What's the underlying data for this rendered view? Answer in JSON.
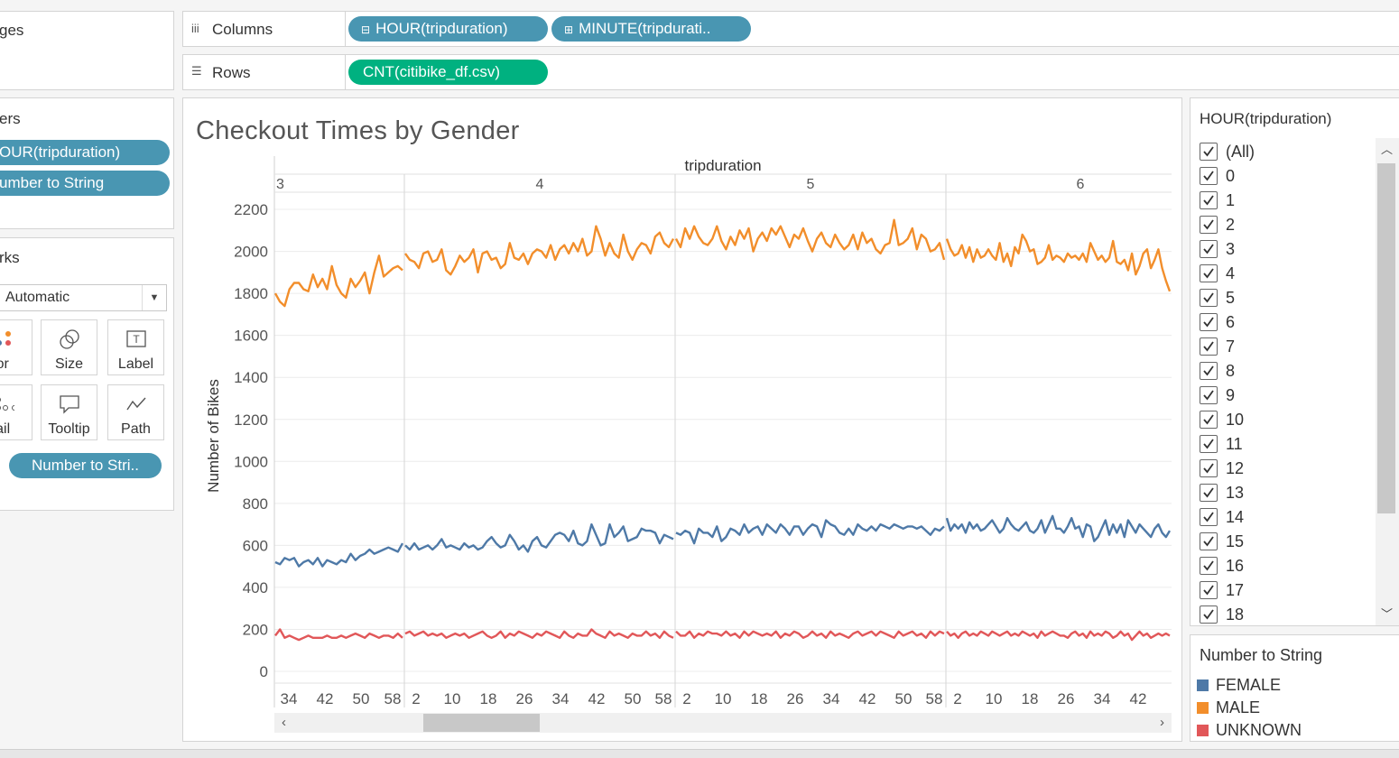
{
  "left_panel": {
    "pages_title": "ges",
    "filters_title": "ers",
    "filter_pills": [
      "OUR(tripduration)",
      "umber to String"
    ],
    "marks_title": "rks",
    "mark_type": "Automatic",
    "mark_buttons": [
      {
        "label": "olor",
        "icon": "color-icon"
      },
      {
        "label": "Size",
        "icon": "size-icon"
      },
      {
        "label": "Label",
        "icon": "label-icon"
      },
      {
        "label": "etail",
        "icon": "detail-icon"
      },
      {
        "label": "Tooltip",
        "icon": "tooltip-icon"
      },
      {
        "label": "Path",
        "icon": "path-icon"
      }
    ],
    "marks_pill": "Number to Stri.."
  },
  "shelves": {
    "columns_label": "Columns",
    "columns_pills": [
      "HOUR(tripduration)",
      "MINUTE(tripdurati.."
    ],
    "rows_label": "Rows",
    "rows_pills": [
      "CNT(citibike_df.csv)"
    ]
  },
  "filter_card": {
    "title": "HOUR(tripduration)",
    "items": [
      "(All)",
      "0",
      "1",
      "2",
      "3",
      "4",
      "5",
      "6",
      "7",
      "8",
      "9",
      "10",
      "11",
      "12",
      "13",
      "14",
      "15",
      "16",
      "17",
      "18"
    ]
  },
  "legend_card": {
    "title": "Number to String",
    "items": [
      {
        "label": "FEMALE",
        "color": "#4e79a7"
      },
      {
        "label": "MALE",
        "color": "#f28e2b"
      },
      {
        "label": "UNKNOWN",
        "color": "#e15759"
      }
    ]
  },
  "chart_data": {
    "type": "line",
    "title": "Checkout Times by Gender",
    "top_axis_title": "tripduration",
    "hour_headers": [
      "3",
      "4",
      "5",
      "6"
    ],
    "ylabel": "Number of Bikes",
    "ylim": [
      0,
      2200
    ],
    "yticks": [
      0,
      200,
      400,
      600,
      800,
      1000,
      1200,
      1400,
      1600,
      1800,
      2000,
      2200
    ],
    "xtick_labels": [
      [
        "34",
        "42",
        "50",
        "58"
      ],
      [
        "2",
        "10",
        "18",
        "26",
        "34",
        "42",
        "50",
        "58"
      ],
      [
        "2",
        "10",
        "18",
        "26",
        "34",
        "42",
        "50",
        "58"
      ],
      [
        "2",
        "10",
        "18",
        "26",
        "34",
        "42"
      ]
    ],
    "x_minutes_visible": {
      "hour_3_start": 26,
      "hour_6_end": 50
    },
    "grid": true,
    "series": [
      {
        "name": "MALE",
        "color": "#f28e2b",
        "hours": [
          [
            1800,
            1760,
            1740,
            1820,
            1850,
            1850,
            1820,
            1810,
            1890,
            1830,
            1870,
            1820,
            1930,
            1840,
            1800,
            1780,
            1870,
            1830,
            1860,
            1900,
            1800,
            1900,
            1980,
            1880,
            1900,
            1920,
            1930,
            1910
          ],
          [
            1990,
            1960,
            1950,
            1920,
            1990,
            2000,
            1950,
            1960,
            2010,
            1910,
            1890,
            1930,
            1980,
            1950,
            1970,
            2010,
            1900,
            1990,
            2000,
            1960,
            1970,
            1920,
            1940,
            2040,
            1970,
            1960,
            1990,
            1940,
            1990,
            2010,
            2000,
            1970,
            2030,
            1960,
            2010,
            2030,
            1990,
            2040,
            2000,
            2060,
            1980,
            2000,
            2120,
            2060,
            1980,
            2040,
            1990,
            1970,
            2080,
            2000,
            1960,
            2010,
            2040,
            2030,
            1990,
            2070,
            2090,
            2040,
            2020,
            2060
          ],
          [
            2060,
            2020,
            2110,
            2060,
            2120,
            2070,
            2040,
            2030,
            2060,
            2120,
            2050,
            2010,
            2070,
            2030,
            2100,
            2060,
            2110,
            2000,
            2060,
            2090,
            2050,
            2110,
            2080,
            2120,
            2070,
            2020,
            2080,
            2060,
            2110,
            2050,
            2000,
            2060,
            2090,
            2040,
            2020,
            2080,
            2040,
            2010,
            2030,
            2080,
            2010,
            2090,
            2040,
            2060,
            2010,
            1990,
            2030,
            2040,
            2150,
            2030,
            2040,
            2060,
            2110,
            2010,
            2080,
            2060,
            2000,
            2010,
            2040,
            1960
          ],
          [
            2060,
            2010,
            1980,
            1990,
            2030,
            1970,
            2020,
            1950,
            2010,
            1970,
            1980,
            2010,
            1980,
            1960,
            2040,
            1950,
            1990,
            1930,
            2020,
            1990,
            2080,
            2050,
            2000,
            2010,
            1940,
            1950,
            1970,
            2030,
            1960,
            1980,
            1970,
            1950,
            1990,
            1970,
            1980,
            1960,
            1990,
            1950,
            2040,
            2000,
            1960,
            1980,
            1950,
            1970,
            2050,
            1950,
            1940,
            1960,
            1910,
            1990,
            1890,
            1930,
            1990,
            2010,
            1920,
            1960,
            2010,
            1920,
            1860,
            1810
          ]
        ]
      },
      {
        "name": "FEMALE",
        "color": "#4e79a7",
        "hours": [
          [
            520,
            510,
            540,
            530,
            540,
            500,
            520,
            530,
            510,
            540,
            500,
            530,
            520,
            510,
            530,
            520,
            560,
            530,
            550,
            560,
            580,
            560,
            570,
            580,
            590,
            580,
            570,
            610
          ],
          [
            600,
            580,
            610,
            580,
            590,
            600,
            580,
            600,
            630,
            590,
            600,
            590,
            580,
            610,
            590,
            600,
            580,
            590,
            620,
            640,
            610,
            590,
            600,
            650,
            620,
            580,
            600,
            570,
            620,
            640,
            600,
            590,
            620,
            650,
            660,
            650,
            620,
            670,
            610,
            600,
            620,
            700,
            650,
            600,
            610,
            700,
            640,
            660,
            690,
            620,
            630,
            640,
            680,
            670,
            670,
            660,
            610,
            650,
            640,
            630
          ],
          [
            660,
            650,
            670,
            660,
            610,
            680,
            660,
            660,
            640,
            690,
            620,
            640,
            680,
            670,
            650,
            700,
            660,
            680,
            690,
            650,
            700,
            680,
            660,
            700,
            680,
            650,
            690,
            690,
            650,
            680,
            700,
            690,
            640,
            720,
            700,
            690,
            660,
            650,
            680,
            650,
            700,
            680,
            670,
            690,
            670,
            700,
            690,
            680,
            700,
            690,
            680,
            690,
            690,
            680,
            690,
            670,
            650,
            680,
            670,
            690
          ],
          [
            730,
            670,
            700,
            680,
            700,
            660,
            710,
            680,
            700,
            670,
            680,
            700,
            720,
            690,
            660,
            680,
            730,
            700,
            680,
            670,
            690,
            710,
            670,
            660,
            680,
            720,
            660,
            700,
            740,
            680,
            680,
            660,
            690,
            730,
            680,
            690,
            640,
            700,
            690,
            620,
            640,
            680,
            720,
            650,
            700,
            660,
            700,
            640,
            720,
            690,
            660,
            700,
            680,
            660,
            640,
            680,
            700,
            660,
            640,
            670
          ]
        ]
      },
      {
        "name": "UNKNOWN",
        "color": "#e15759",
        "hours": [
          [
            170,
            200,
            160,
            170,
            160,
            150,
            160,
            170,
            160,
            160,
            160,
            170,
            160,
            160,
            170,
            160,
            170,
            180,
            170,
            160,
            180,
            170,
            160,
            170,
            170,
            160,
            180,
            160
          ],
          [
            180,
            190,
            170,
            180,
            190,
            170,
            180,
            170,
            180,
            160,
            170,
            180,
            170,
            180,
            160,
            170,
            180,
            190,
            170,
            160,
            170,
            190,
            160,
            180,
            170,
            190,
            180,
            170,
            160,
            180,
            170,
            190,
            180,
            170,
            160,
            190,
            170,
            160,
            180,
            170,
            170,
            200,
            180,
            170,
            160,
            190,
            170,
            180,
            170,
            160,
            180,
            170,
            170,
            190,
            170,
            180,
            160,
            190,
            170,
            160
          ],
          [
            190,
            170,
            170,
            190,
            160,
            180,
            170,
            190,
            180,
            180,
            170,
            190,
            170,
            180,
            160,
            190,
            170,
            190,
            180,
            170,
            180,
            170,
            190,
            160,
            180,
            170,
            190,
            180,
            160,
            170,
            190,
            170,
            180,
            160,
            190,
            170,
            180,
            170,
            160,
            180,
            190,
            170,
            180,
            190,
            170,
            190,
            180,
            170,
            160,
            190,
            170,
            180,
            190,
            170,
            180,
            160,
            190,
            170,
            190,
            180
          ],
          [
            190,
            170,
            180,
            160,
            180,
            190,
            170,
            180,
            170,
            190,
            180,
            170,
            190,
            180,
            170,
            180,
            190,
            170,
            180,
            170,
            190,
            180,
            170,
            180,
            160,
            190,
            170,
            180,
            190,
            180,
            170,
            170,
            160,
            180,
            190,
            170,
            180,
            160,
            190,
            170,
            180,
            170,
            190,
            180,
            160,
            170,
            190,
            170,
            180,
            150,
            170,
            190,
            170,
            180,
            160,
            170,
            180,
            170,
            180,
            170
          ]
        ]
      }
    ]
  }
}
